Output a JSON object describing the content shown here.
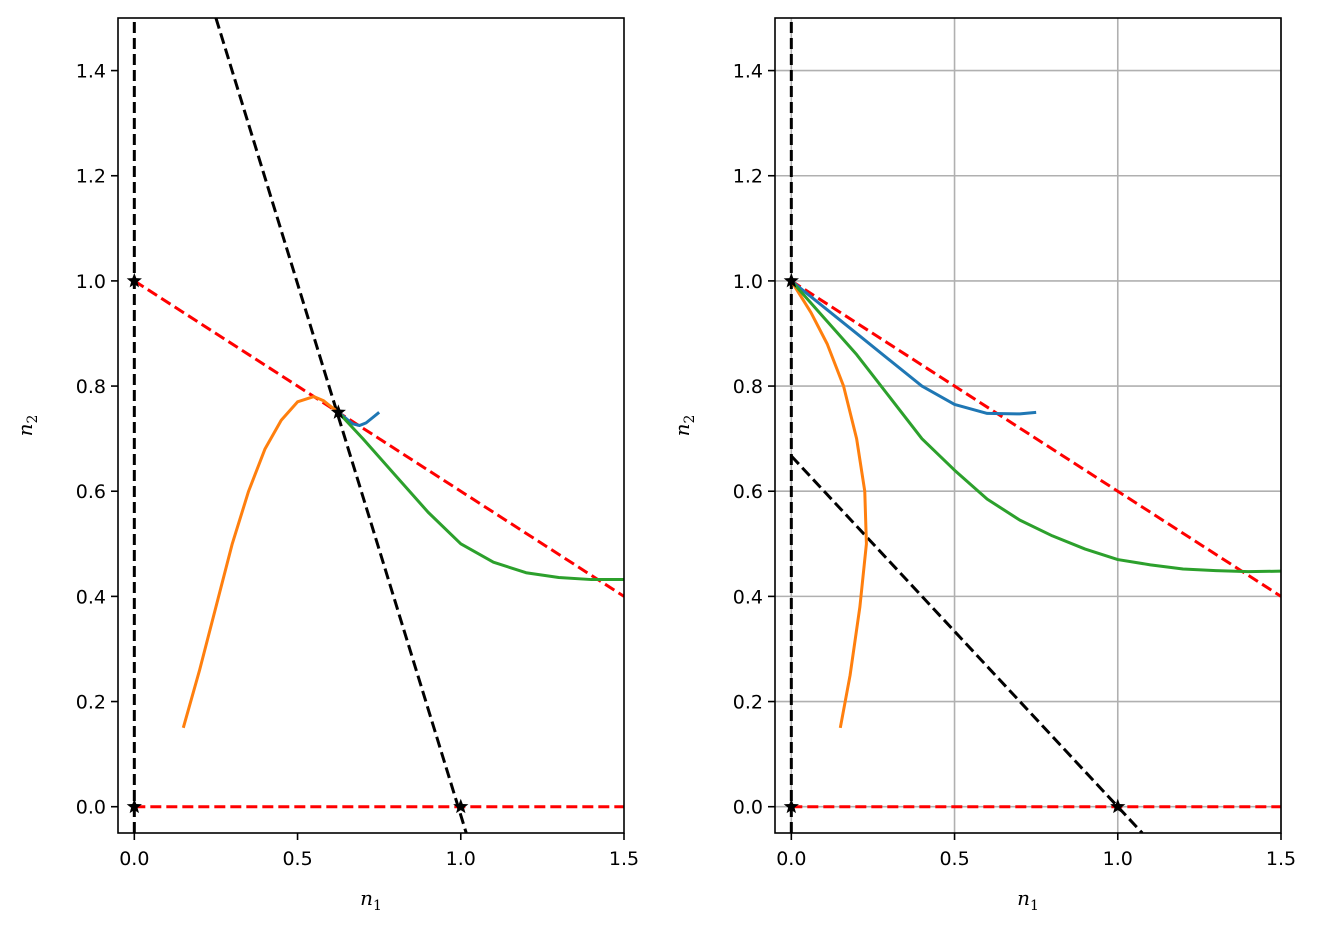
{
  "chart_data": [
    {
      "type": "line",
      "xlabel": "n",
      "xlabel_sub": "1",
      "ylabel": "n",
      "ylabel_sub": "2",
      "xlim": [
        -0.05,
        1.5
      ],
      "ylim": [
        -0.05,
        1.5
      ],
      "xticks": [
        0.0,
        0.5,
        1.0,
        1.5
      ],
      "xtick_labels": [
        "0.0",
        "0.5",
        "1.0",
        "1.5"
      ],
      "yticks": [
        0.0,
        0.2,
        0.4,
        0.6,
        0.8,
        1.0,
        1.2,
        1.4
      ],
      "ytick_labels": [
        "0.0",
        "0.2",
        "0.4",
        "0.6",
        "0.8",
        "1.0",
        "1.2",
        "1.4"
      ],
      "grid": false,
      "nullclines": [
        {
          "color": "#ff0000",
          "style": "dashed",
          "points": [
            [
              0,
              1.0
            ],
            [
              1.5,
              0.4
            ]
          ]
        },
        {
          "color": "#ff0000",
          "style": "dashed",
          "points": [
            [
              0,
              0.0
            ],
            [
              1.5,
              0.0
            ]
          ]
        },
        {
          "color": "#000000",
          "style": "dashed",
          "points": [
            [
              0,
              -0.05
            ],
            [
              0,
              1.5
            ]
          ]
        },
        {
          "color": "#000000",
          "style": "dashed",
          "points": [
            [
              0.25,
              1.5
            ],
            [
              1.0167,
              -0.05
            ]
          ]
        }
      ],
      "fixed_points": [
        [
          0,
          0
        ],
        [
          0,
          1.0
        ],
        [
          1.0,
          0
        ],
        [
          0.625,
          0.75
        ]
      ],
      "series": [
        {
          "color": "#1f77b4",
          "points": [
            [
              0.75,
              0.75
            ],
            [
              0.73,
              0.74
            ],
            [
              0.71,
              0.73
            ],
            [
              0.69,
              0.725
            ],
            [
              0.67,
              0.728
            ],
            [
              0.655,
              0.735
            ],
            [
              0.64,
              0.743
            ],
            [
              0.625,
              0.75
            ]
          ]
        },
        {
          "color": "#ff7f0e",
          "points": [
            [
              0.15,
              0.15
            ],
            [
              0.2,
              0.26
            ],
            [
              0.25,
              0.38
            ],
            [
              0.3,
              0.5
            ],
            [
              0.35,
              0.6
            ],
            [
              0.4,
              0.68
            ],
            [
              0.45,
              0.735
            ],
            [
              0.5,
              0.77
            ],
            [
              0.55,
              0.78
            ],
            [
              0.58,
              0.772
            ],
            [
              0.6,
              0.762
            ],
            [
              0.625,
              0.75
            ]
          ]
        },
        {
          "color": "#2ca02c",
          "points": [
            [
              0.625,
              0.75
            ],
            [
              0.7,
              0.7
            ],
            [
              0.8,
              0.63
            ],
            [
              0.9,
              0.56
            ],
            [
              1.0,
              0.5
            ],
            [
              1.1,
              0.465
            ],
            [
              1.2,
              0.445
            ],
            [
              1.3,
              0.436
            ],
            [
              1.4,
              0.432
            ],
            [
              1.5,
              0.432
            ]
          ]
        }
      ]
    },
    {
      "type": "line",
      "xlabel": "n",
      "xlabel_sub": "1",
      "ylabel": "n",
      "ylabel_sub": "2",
      "xlim": [
        -0.05,
        1.5
      ],
      "ylim": [
        -0.05,
        1.5
      ],
      "xticks": [
        0.0,
        0.5,
        1.0,
        1.5
      ],
      "xtick_labels": [
        "0.0",
        "0.5",
        "1.0",
        "1.5"
      ],
      "yticks": [
        0.0,
        0.2,
        0.4,
        0.6,
        0.8,
        1.0,
        1.2,
        1.4
      ],
      "ytick_labels": [
        "0.0",
        "0.2",
        "0.4",
        "0.6",
        "0.8",
        "1.0",
        "1.2",
        "1.4"
      ],
      "grid": true,
      "nullclines": [
        {
          "color": "#ff0000",
          "style": "dashed",
          "points": [
            [
              0,
              1.0
            ],
            [
              1.5,
              0.4
            ]
          ]
        },
        {
          "color": "#ff0000",
          "style": "dashed",
          "points": [
            [
              0,
              0.0
            ],
            [
              1.5,
              0.0
            ]
          ]
        },
        {
          "color": "#000000",
          "style": "dashed",
          "points": [
            [
              0,
              -0.05
            ],
            [
              0,
              1.5
            ]
          ]
        },
        {
          "color": "#000000",
          "style": "dashed",
          "points": [
            [
              0,
              0.667
            ],
            [
              1.075,
              -0.05
            ]
          ]
        }
      ],
      "fixed_points": [
        [
          0,
          0
        ],
        [
          0,
          1.0
        ],
        [
          1.0,
          0
        ]
      ],
      "series": [
        {
          "color": "#1f77b4",
          "points": [
            [
              0.75,
              0.75
            ],
            [
              0.7,
              0.747
            ],
            [
              0.6,
              0.748
            ],
            [
              0.5,
              0.765
            ],
            [
              0.4,
              0.8
            ],
            [
              0.3,
              0.85
            ],
            [
              0.2,
              0.9
            ],
            [
              0.1,
              0.95
            ],
            [
              0.0,
              1.0
            ]
          ]
        },
        {
          "color": "#ff7f0e",
          "points": [
            [
              0.15,
              0.15
            ],
            [
              0.18,
              0.25
            ],
            [
              0.21,
              0.38
            ],
            [
              0.23,
              0.5
            ],
            [
              0.225,
              0.6
            ],
            [
              0.2,
              0.7
            ],
            [
              0.16,
              0.8
            ],
            [
              0.11,
              0.88
            ],
            [
              0.06,
              0.94
            ],
            [
              0.0,
              1.0
            ]
          ]
        },
        {
          "color": "#2ca02c",
          "points": [
            [
              0.0,
              1.0
            ],
            [
              0.1,
              0.93
            ],
            [
              0.2,
              0.86
            ],
            [
              0.3,
              0.78
            ],
            [
              0.4,
              0.7
            ],
            [
              0.5,
              0.64
            ],
            [
              0.6,
              0.585
            ],
            [
              0.7,
              0.545
            ],
            [
              0.8,
              0.515
            ],
            [
              0.9,
              0.49
            ],
            [
              1.0,
              0.47
            ],
            [
              1.1,
              0.46
            ],
            [
              1.2,
              0.452
            ],
            [
              1.3,
              0.449
            ],
            [
              1.4,
              0.447
            ],
            [
              1.5,
              0.448
            ]
          ]
        }
      ]
    }
  ]
}
